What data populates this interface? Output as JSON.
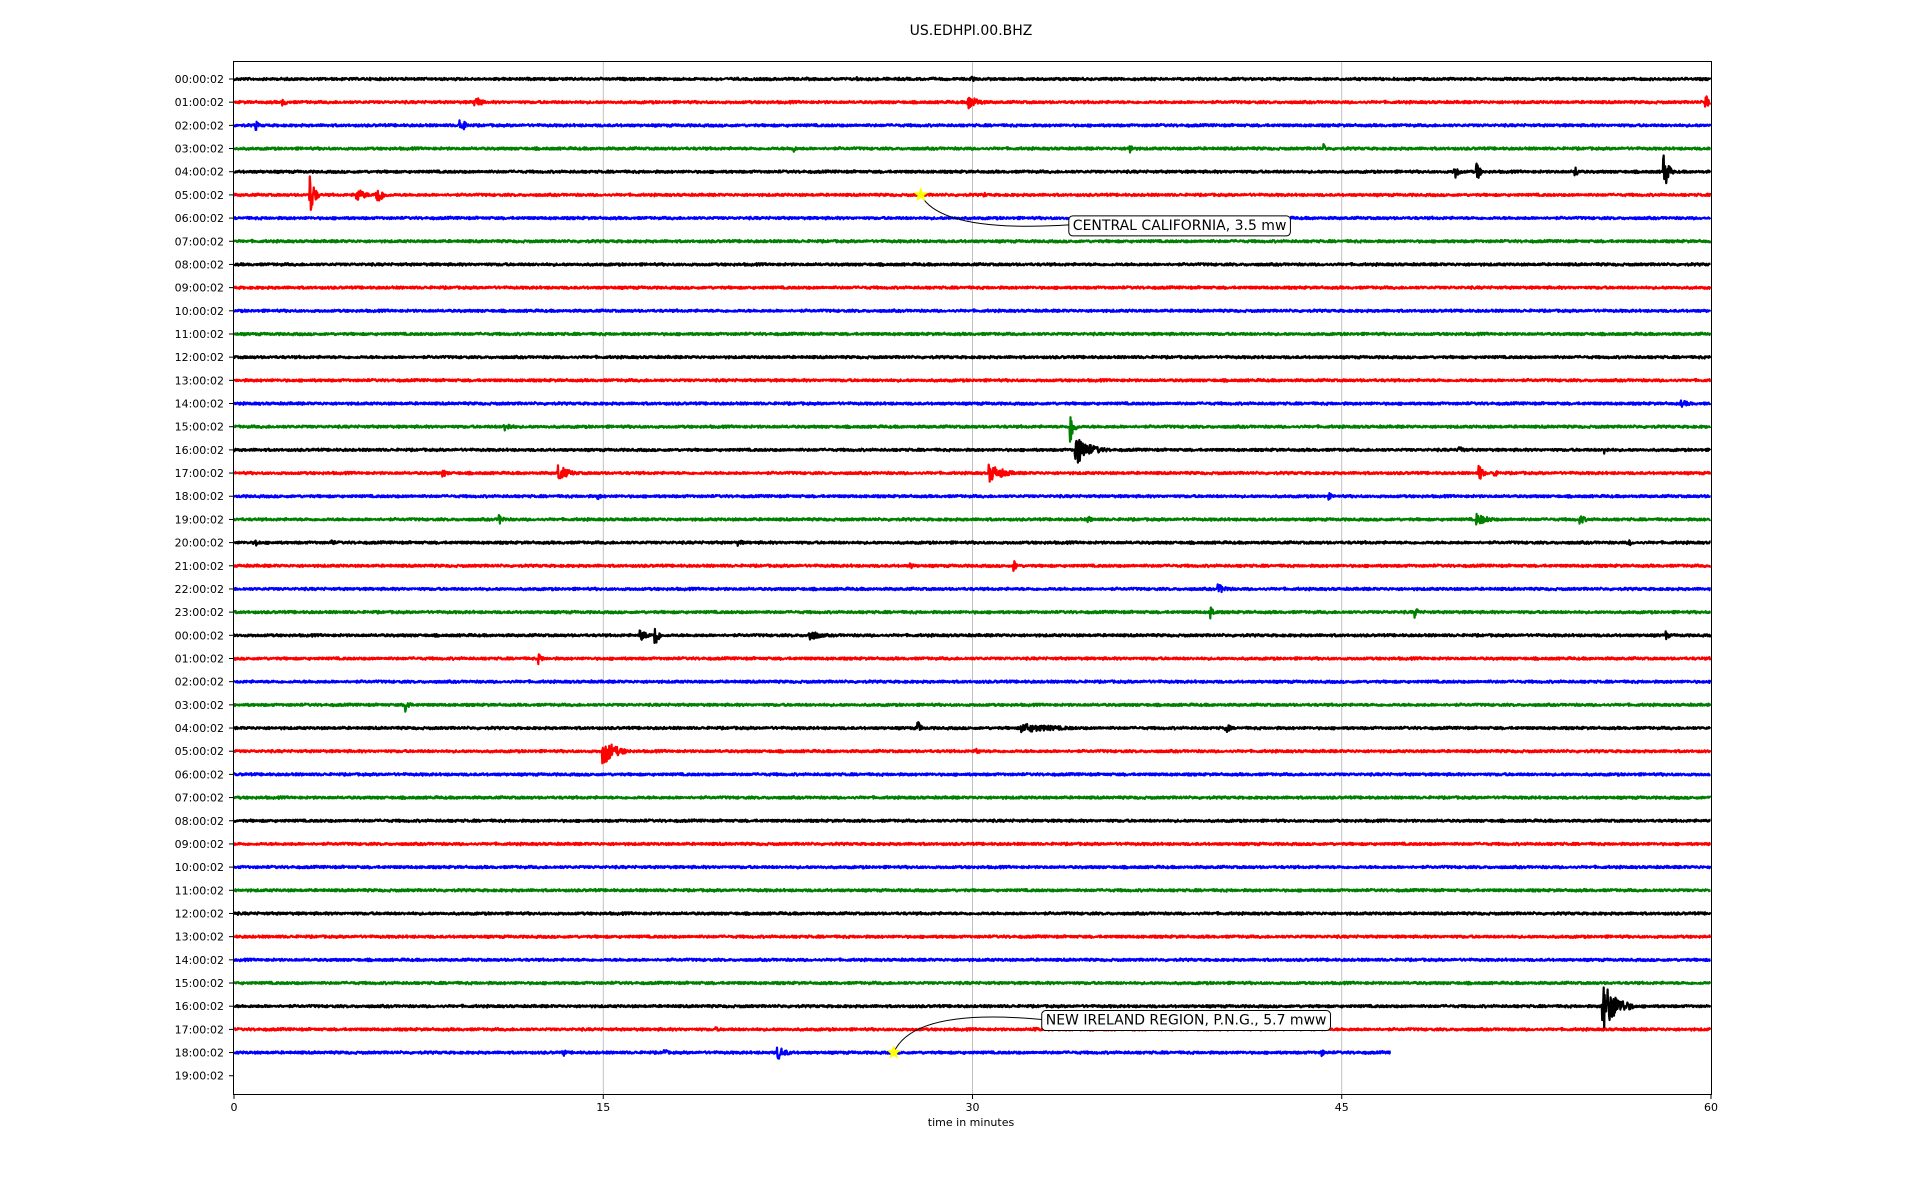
{
  "chart_data": {
    "type": "line",
    "title": "US.EDHPI.00.BHZ",
    "xlabel": "time in minutes",
    "ylabel": "",
    "xlim": [
      0,
      60
    ],
    "x_ticks": [
      "0",
      "15",
      "30",
      "45",
      "60"
    ],
    "grid": "vertical",
    "row_labels": [
      "00:00:02",
      "01:00:02",
      "02:00:02",
      "03:00:02",
      "04:00:02",
      "05:00:02",
      "06:00:02",
      "07:00:02",
      "08:00:02",
      "09:00:02",
      "10:00:02",
      "11:00:02",
      "12:00:02",
      "13:00:02",
      "14:00:02",
      "15:00:02",
      "16:00:02",
      "17:00:02",
      "18:00:02",
      "19:00:02",
      "20:00:02",
      "21:00:02",
      "22:00:02",
      "23:00:02",
      "00:00:02",
      "01:00:02",
      "02:00:02",
      "03:00:02",
      "04:00:02",
      "05:00:02",
      "06:00:02",
      "07:00:02",
      "08:00:02",
      "09:00:02",
      "10:00:02",
      "11:00:02",
      "12:00:02",
      "13:00:02",
      "14:00:02",
      "15:00:02",
      "16:00:02",
      "17:00:02",
      "18:00:02",
      "19:00:02"
    ],
    "trace_colors": [
      "#000000",
      "#ff0000",
      "#0000ff",
      "#008000"
    ],
    "last_trace_end_minute": 47,
    "bursts": [
      {
        "row": 0,
        "minute": 30.0,
        "amp": 0.3,
        "dur": 0.3
      },
      {
        "row": 0,
        "minute": 25.3,
        "amp": 0.2,
        "dur": 0.2
      },
      {
        "row": 1,
        "minute": 2.0,
        "amp": 0.3,
        "dur": 0.5
      },
      {
        "row": 1,
        "minute": 9.8,
        "amp": 0.6,
        "dur": 0.6
      },
      {
        "row": 1,
        "minute": 29.8,
        "amp": 0.7,
        "dur": 1.0
      },
      {
        "row": 1,
        "minute": 59.8,
        "amp": 0.9,
        "dur": 0.3
      },
      {
        "row": 2,
        "minute": 0.9,
        "amp": 0.4,
        "dur": 0.3
      },
      {
        "row": 2,
        "minute": 9.2,
        "amp": 0.7,
        "dur": 0.5
      },
      {
        "row": 3,
        "minute": 22.7,
        "amp": 0.4,
        "dur": 0.3
      },
      {
        "row": 3,
        "minute": 36.4,
        "amp": 0.5,
        "dur": 0.3
      },
      {
        "row": 3,
        "minute": 44.3,
        "amp": 0.4,
        "dur": 0.2
      },
      {
        "row": 4,
        "minute": 49.6,
        "amp": 0.6,
        "dur": 0.4
      },
      {
        "row": 4,
        "minute": 50.5,
        "amp": 0.9,
        "dur": 0.3
      },
      {
        "row": 4,
        "minute": 54.5,
        "amp": 0.5,
        "dur": 0.3
      },
      {
        "row": 4,
        "minute": 58.1,
        "amp": 1.8,
        "dur": 0.4
      },
      {
        "row": 5,
        "minute": 3.1,
        "amp": 1.9,
        "dur": 0.4
      },
      {
        "row": 5,
        "minute": 5.0,
        "amp": 0.6,
        "dur": 0.8
      },
      {
        "row": 5,
        "minute": 5.8,
        "amp": 1.1,
        "dur": 0.5
      },
      {
        "row": 5,
        "minute": 30.5,
        "amp": 0.2,
        "dur": 0.2
      },
      {
        "row": 14,
        "minute": 58.8,
        "amp": 0.3,
        "dur": 1.0
      },
      {
        "row": 15,
        "minute": 11.0,
        "amp": 0.4,
        "dur": 0.8
      },
      {
        "row": 15,
        "minute": 34.0,
        "amp": 1.5,
        "dur": 0.3
      },
      {
        "row": 16,
        "minute": 34.2,
        "amp": 1.3,
        "dur": 1.4
      },
      {
        "row": 16,
        "minute": 49.8,
        "amp": 0.4,
        "dur": 0.4
      },
      {
        "row": 16,
        "minute": 55.7,
        "amp": 0.4,
        "dur": 0.3
      },
      {
        "row": 17,
        "minute": 8.5,
        "amp": 0.4,
        "dur": 0.4
      },
      {
        "row": 17,
        "minute": 13.2,
        "amp": 0.7,
        "dur": 1.0
      },
      {
        "row": 17,
        "minute": 30.7,
        "amp": 0.8,
        "dur": 1.4
      },
      {
        "row": 17,
        "minute": 50.6,
        "amp": 0.7,
        "dur": 0.4
      },
      {
        "row": 17,
        "minute": 51.2,
        "amp": 0.6,
        "dur": 0.2
      },
      {
        "row": 18,
        "minute": 14.8,
        "amp": 0.3,
        "dur": 0.3
      },
      {
        "row": 18,
        "minute": 44.5,
        "amp": 0.3,
        "dur": 0.3
      },
      {
        "row": 19,
        "minute": 10.8,
        "amp": 0.4,
        "dur": 0.5
      },
      {
        "row": 19,
        "minute": 34.7,
        "amp": 0.3,
        "dur": 0.5
      },
      {
        "row": 19,
        "minute": 50.5,
        "amp": 0.5,
        "dur": 1.2
      },
      {
        "row": 19,
        "minute": 54.7,
        "amp": 0.4,
        "dur": 0.6
      },
      {
        "row": 20,
        "minute": 0.9,
        "amp": 0.3,
        "dur": 0.4
      },
      {
        "row": 20,
        "minute": 4.0,
        "amp": 0.3,
        "dur": 0.3
      },
      {
        "row": 20,
        "minute": 20.5,
        "amp": 0.3,
        "dur": 0.5
      },
      {
        "row": 20,
        "minute": 56.7,
        "amp": 0.3,
        "dur": 0.2
      },
      {
        "row": 21,
        "minute": 27.5,
        "amp": 0.3,
        "dur": 0.4
      },
      {
        "row": 21,
        "minute": 31.7,
        "amp": 0.5,
        "dur": 0.3
      },
      {
        "row": 22,
        "minute": 40.0,
        "amp": 0.4,
        "dur": 1.0
      },
      {
        "row": 23,
        "minute": 39.7,
        "amp": 0.6,
        "dur": 0.3
      },
      {
        "row": 23,
        "minute": 48.0,
        "amp": 0.5,
        "dur": 0.3
      },
      {
        "row": 24,
        "minute": 17.1,
        "amp": 1.4,
        "dur": 0.3
      },
      {
        "row": 24,
        "minute": 16.5,
        "amp": 0.5,
        "dur": 0.8
      },
      {
        "row": 24,
        "minute": 23.4,
        "amp": 0.5,
        "dur": 1.0
      },
      {
        "row": 24,
        "minute": 58.2,
        "amp": 0.4,
        "dur": 0.3
      },
      {
        "row": 25,
        "minute": 12.4,
        "amp": 0.5,
        "dur": 0.3
      },
      {
        "row": 27,
        "minute": 7.0,
        "amp": 0.7,
        "dur": 0.3
      },
      {
        "row": 28,
        "minute": 27.8,
        "amp": 0.6,
        "dur": 0.3
      },
      {
        "row": 28,
        "minute": 32.0,
        "amp": 0.4,
        "dur": 4.0
      },
      {
        "row": 28,
        "minute": 40.3,
        "amp": 0.5,
        "dur": 0.4
      },
      {
        "row": 29,
        "minute": 15.0,
        "amp": 1.2,
        "dur": 1.2
      },
      {
        "row": 29,
        "minute": 30.2,
        "amp": 0.3,
        "dur": 0.3
      },
      {
        "row": 40,
        "minute": 55.6,
        "amp": 2.3,
        "dur": 1.3
      },
      {
        "row": 41,
        "minute": 19.6,
        "amp": 0.2,
        "dur": 0.4
      },
      {
        "row": 41,
        "minute": 32.5,
        "amp": 0.3,
        "dur": 0.4
      },
      {
        "row": 42,
        "minute": 13.4,
        "amp": 0.4,
        "dur": 0.2
      },
      {
        "row": 42,
        "minute": 17.5,
        "amp": 0.3,
        "dur": 0.4
      },
      {
        "row": 42,
        "minute": 22.1,
        "amp": 0.6,
        "dur": 0.8
      },
      {
        "row": 42,
        "minute": 44.2,
        "amp": 0.3,
        "dur": 0.3
      }
    ],
    "annotations": [
      {
        "text": "CENTRAL CALIFORNIA, 3.5 mw",
        "row": 5,
        "minute": 27.9
      },
      {
        "text": "NEW IRELAND REGION, P.N.G., 5.7 mww",
        "row": 42,
        "minute": 26.8
      }
    ]
  }
}
